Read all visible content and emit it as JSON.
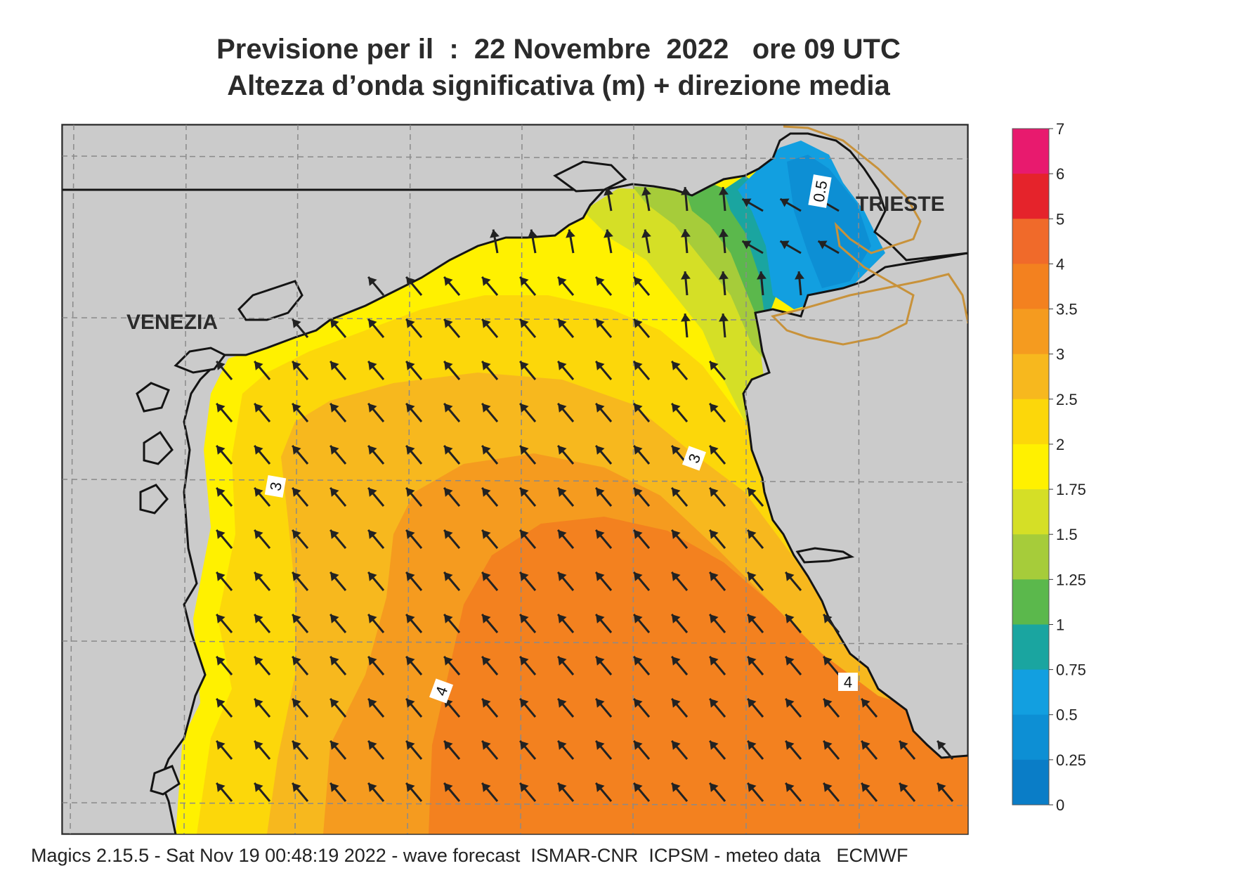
{
  "title": {
    "line1": "Previsione per il  :  22 Novembre  2022   ore 09 UTC",
    "line2": "Altezza d’onda significativa (m) + direzione media"
  },
  "map": {
    "cities": [
      {
        "id": "venezia",
        "label": "VENEZIA"
      },
      {
        "id": "trieste",
        "label": "TRIESTE"
      }
    ],
    "contour_labels": [
      "0.5",
      "3",
      "3",
      "4",
      "4"
    ],
    "colors": {
      "land": "#cbcbcb",
      "coast": "#141414",
      "border": "#c8923a",
      "grid": "#8a8a8a",
      "arrow": "#222222"
    },
    "arrow_direction": "towards north-west"
  },
  "colorbar": {
    "ticks": [
      "7",
      "6",
      "5",
      "4",
      "3.5",
      "3",
      "2.5",
      "2",
      "1.75",
      "1.5",
      "1.25",
      "1",
      "0.75",
      "0.5",
      "0.25",
      "0"
    ],
    "colors": [
      "#e81a6e",
      "#e5232b",
      "#f06a2a",
      "#f3811f",
      "#f59b1f",
      "#f7b81e",
      "#fcd70a",
      "#fff100",
      "#d5df26",
      "#a6cc3a",
      "#5bb84c",
      "#1aa5a0",
      "#129fe0",
      "#0d8fd4",
      "#0a7dc7",
      "#0866b3"
    ]
  },
  "footer": "Magics 2.15.5 - Sat Nov 19 00:48:19 2022 - wave forecast  ISMAR-CNR  ICPSM - meteo data   ECMWF"
}
